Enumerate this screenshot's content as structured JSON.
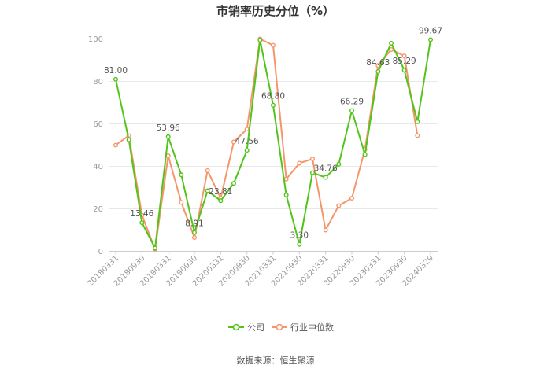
{
  "chart_data": {
    "type": "line",
    "title": "市销率历史分位（%）",
    "source": "数据来源：恒生聚源",
    "ylim": [
      0,
      100
    ],
    "yticks": [
      0,
      20,
      40,
      60,
      80,
      100
    ],
    "grid": true,
    "legend_position": "bottom",
    "x": [
      "20180331",
      "20180630",
      "20180930",
      "20181231",
      "20190331",
      "20190630",
      "20190930",
      "20191231",
      "20200331",
      "20200630",
      "20200930",
      "20201231",
      "20210331",
      "20210630",
      "20210930",
      "20211231",
      "20220331",
      "20220630",
      "20220930",
      "20221231",
      "20230331",
      "20230630",
      "20230930",
      "20231231",
      "20240329"
    ],
    "x_tick_labels": [
      "20180331",
      "20180930",
      "20190331",
      "20190930",
      "20200331",
      "20200930",
      "20210331",
      "20210930",
      "20220331",
      "20220930",
      "20230331",
      "20230930",
      "20240329"
    ],
    "series": [
      {
        "name": "公司",
        "color": "#52c41a",
        "values": [
          81.0,
          52.5,
          13.46,
          1.5,
          53.96,
          36.0,
          8.91,
          28.5,
          23.81,
          32.0,
          47.56,
          99.5,
          68.8,
          26.5,
          3.3,
          37.0,
          34.76,
          41.0,
          66.29,
          45.5,
          84.63,
          98.0,
          85.29,
          61.0,
          99.67
        ]
      },
      {
        "name": "行业中位数",
        "color": "#f4956a",
        "values": [
          50.0,
          54.5,
          17.0,
          1.0,
          45.0,
          23.0,
          6.5,
          38.0,
          25.0,
          51.5,
          57.5,
          100.0,
          97.0,
          34.0,
          41.5,
          43.5,
          10.0,
          21.5,
          25.0,
          48.0,
          87.5,
          95.0,
          92.0,
          54.5,
          null
        ]
      }
    ],
    "data_labels": [
      {
        "series": 0,
        "index": 0,
        "text": "81.00"
      },
      {
        "series": 0,
        "index": 2,
        "text": "13.46"
      },
      {
        "series": 0,
        "index": 4,
        "text": "53.96"
      },
      {
        "series": 0,
        "index": 6,
        "text": "8.91"
      },
      {
        "series": 0,
        "index": 8,
        "text": "23.81"
      },
      {
        "series": 0,
        "index": 10,
        "text": "47.56"
      },
      {
        "series": 0,
        "index": 12,
        "text": "68.80"
      },
      {
        "series": 0,
        "index": 14,
        "text": "3.30"
      },
      {
        "series": 0,
        "index": 16,
        "text": "34.76"
      },
      {
        "series": 0,
        "index": 18,
        "text": "66.29"
      },
      {
        "series": 0,
        "index": 20,
        "text": "84.63"
      },
      {
        "series": 0,
        "index": 22,
        "text": "85.29"
      },
      {
        "series": 0,
        "index": 24,
        "text": "99.67"
      }
    ]
  }
}
